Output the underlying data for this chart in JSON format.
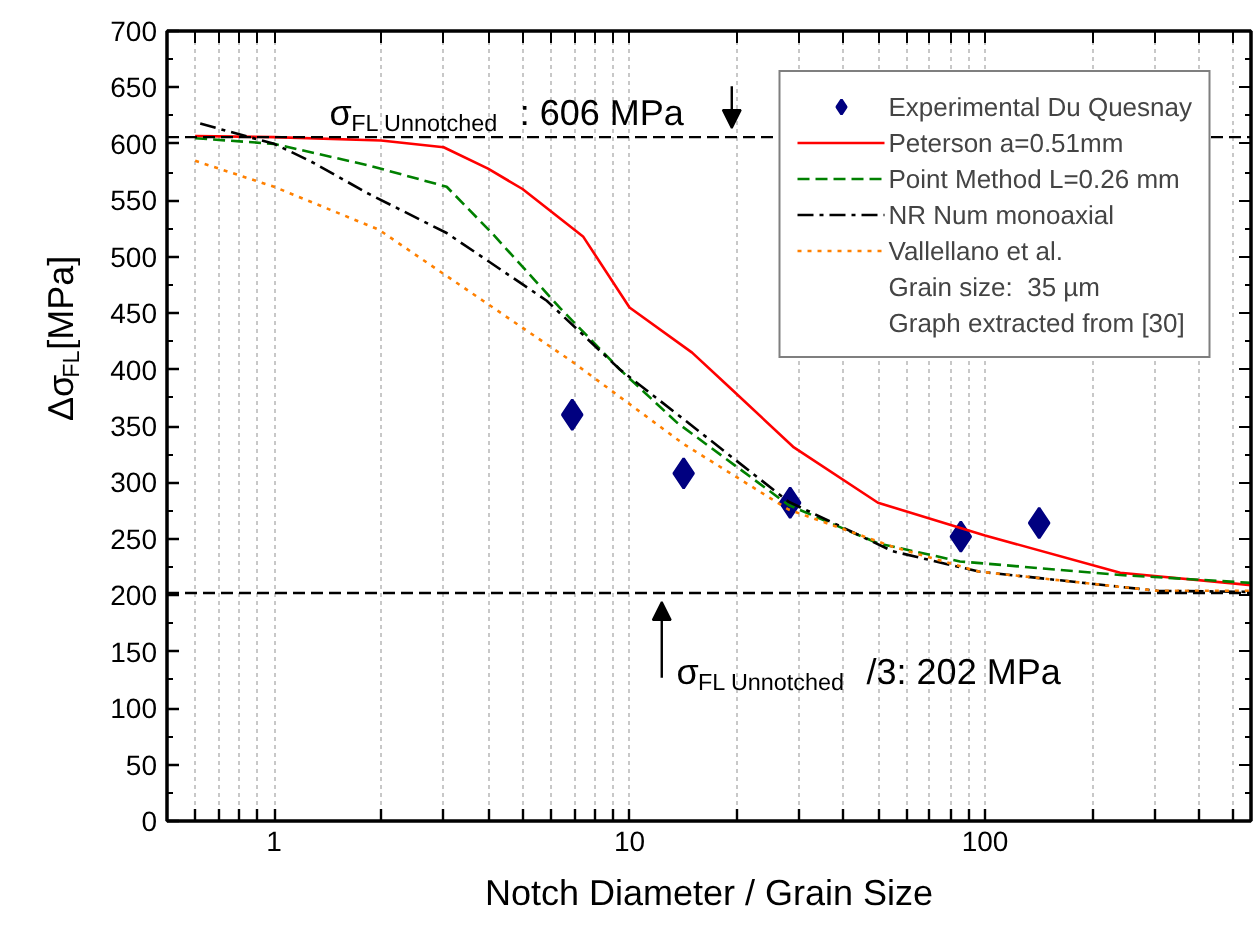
{
  "chart_data": {
    "type": "line",
    "xlabel": "Notch Diameter / Grain Size",
    "ylabel": "Δσ$_{FL}$[MPa]",
    "log": "x",
    "grid": "x",
    "legend": "top right",
    "xlim": [
      0.5,
      560
    ],
    "xticks": [
      {
        "value": 0.6,
        "label": null
      },
      {
        "value": 0.7,
        "label": null
      },
      {
        "value": 0.8,
        "label": null
      },
      {
        "value": 0.9,
        "label": null
      },
      1,
      {
        "value": 2,
        "label": null
      },
      {
        "value": 3,
        "label": null
      },
      {
        "value": 4,
        "label": null
      },
      {
        "value": 5,
        "label": null
      },
      {
        "value": 6,
        "label": null
      },
      {
        "value": 7,
        "label": null
      },
      {
        "value": 8,
        "label": null
      },
      {
        "value": 9,
        "label": null
      },
      10,
      {
        "value": 20,
        "label": null
      },
      {
        "value": 30,
        "label": null
      },
      {
        "value": 40,
        "label": null
      },
      {
        "value": 50,
        "label": null
      },
      {
        "value": 60,
        "label": null
      },
      {
        "value": 70,
        "label": null
      },
      {
        "value": 80,
        "label": null
      },
      {
        "value": 90,
        "label": null
      },
      100,
      {
        "value": 200,
        "label": null
      },
      {
        "value": 300,
        "label": null
      },
      {
        "value": 400,
        "label": null
      },
      {
        "value": 500,
        "label": null
      }
    ],
    "ylim": [
      0,
      700
    ],
    "yticks": [
      0,
      50,
      100,
      150,
      200,
      250,
      300,
      350,
      400,
      450,
      500,
      550,
      600,
      650,
      700
    ],
    "series": [
      {
        "name": "Experimental Du Quesnay",
        "type": "scatter",
        "marker": "diamond",
        "color": "#000080",
        "x": [
          6.9,
          14.2,
          28.3,
          85.5,
          142
        ],
        "values": [
          360,
          308,
          282,
          252,
          264
        ]
      },
      {
        "name": "Peterson a=0.51mm",
        "color": "#ff0000",
        "line_style": "solid",
        "x": [
          0.6,
          1,
          2,
          3,
          4,
          5,
          7.4,
          10,
          15,
          19,
          29,
          50,
          100,
          240,
          560
        ],
        "values": [
          607,
          606,
          603,
          597,
          578,
          560,
          518,
          455,
          415,
          385,
          331,
          282,
          253,
          220,
          209
        ]
      },
      {
        "name": "Point Method L=0.26 mm",
        "color": "#008000",
        "line_style": "dashed",
        "x": [
          0.6,
          1,
          1.84,
          3.06,
          4.1,
          6.4,
          9.4,
          13.6,
          28,
          50,
          85,
          240,
          560
        ],
        "values": [
          605,
          600,
          581,
          562,
          521,
          454,
          400,
          353,
          280,
          246,
          230,
          218,
          211
        ]
      },
      {
        "name": "NR Num monoaxial",
        "color": "#000000",
        "line_style": "dashdot",
        "x": [
          0.62,
          1,
          1.26,
          1.84,
          3.06,
          5.85,
          9.4,
          14.2,
          28,
          55,
          96,
          305,
          560
        ],
        "values": [
          618,
          600,
          585,
          556,
          521,
          461,
          400,
          356,
          283,
          239,
          221,
          204,
          203
        ]
      },
      {
        "name": "Vallellano et al.",
        "color": "#ff8000",
        "line_style": "dotted",
        "x": [
          0.6,
          1,
          1.97,
          3.87,
          6.9,
          14.2,
          28,
          55,
          96,
          305,
          560
        ],
        "values": [
          585,
          562,
          524,
          461,
          407,
          334,
          276,
          243,
          221,
          204,
          204
        ]
      }
    ],
    "ref_lines": [
      {
        "axis": "y",
        "value": 606,
        "label": "σ$_{FL Unnotched}$: 606 MPa",
        "color": "#000000",
        "line_style": "dashed"
      },
      {
        "axis": "y",
        "value": 202,
        "label": "σ$_{FL Unnotched}$/3: 202 MPa",
        "color": "#000000",
        "line_style": "dashed"
      }
    ],
    "annotations": [
      "Grain size:  35 µm",
      "Graph extracted from [30]"
    ]
  }
}
